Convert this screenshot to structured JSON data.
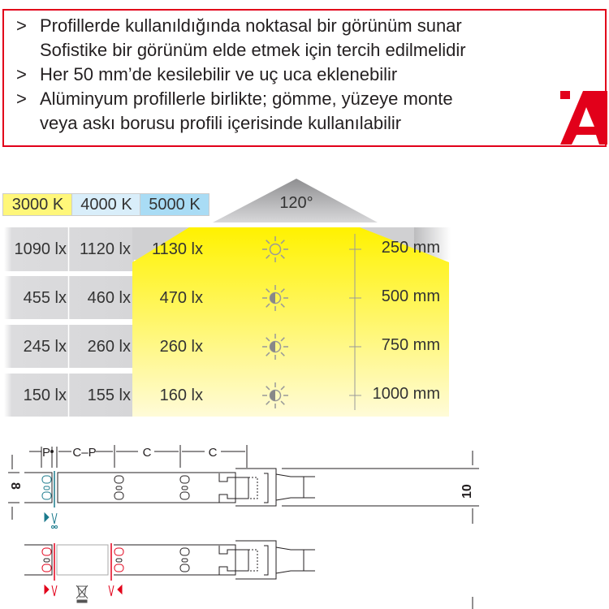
{
  "features": {
    "bullet": ">",
    "lines": [
      {
        "bullet": true,
        "text": "Profillerde kullanıldığında noktasal bir görünüm sunar"
      },
      {
        "bullet": false,
        "text": "Sofistike bir görünüm elde etmek için tercih edilmelidir"
      },
      {
        "bullet": true,
        "text": "Her 50 mm’de kesilebilir ve uç uca eklenebilir"
      },
      {
        "bullet": true,
        "text": "Alüminyum profillerle birlikte; gömme, yüzeye monte"
      },
      {
        "bullet": false,
        "text": "veya askı borusu profili içerisinde kullanılabilir"
      }
    ],
    "border_color": "#e2001a"
  },
  "lux_table": {
    "beam_angle": "120°",
    "color_temps": [
      {
        "label": "3000 K",
        "color": "#fff77a"
      },
      {
        "label": "4000 K",
        "color": "#d9eefa"
      },
      {
        "label": "5000 K",
        "color": "#a9dcf5"
      }
    ],
    "rows": [
      {
        "values": [
          "1090 lx",
          "1120 lx",
          "1130 lx"
        ],
        "distance": "250 mm",
        "icon": "sun-full-icon"
      },
      {
        "values": [
          "455 lx",
          "460 lx",
          "470 lx"
        ],
        "distance": "500 mm",
        "icon": "sun-half-icon"
      },
      {
        "values": [
          "245 lx",
          "260 lx",
          "260 lx"
        ],
        "distance": "750 mm",
        "icon": "sun-half-icon"
      },
      {
        "values": [
          "150 lx",
          "155 lx",
          "160 lx"
        ],
        "distance": "1000 mm",
        "icon": "sun-half-icon"
      }
    ]
  },
  "drawing": {
    "dims": {
      "p": "P",
      "c_minus_p": "C–P",
      "c1": "C",
      "c2": "C",
      "height_strip": "8",
      "height_profile": "10"
    },
    "cut_color_ok": "#1a7a8c",
    "cut_color_waste": "#e2001a"
  }
}
